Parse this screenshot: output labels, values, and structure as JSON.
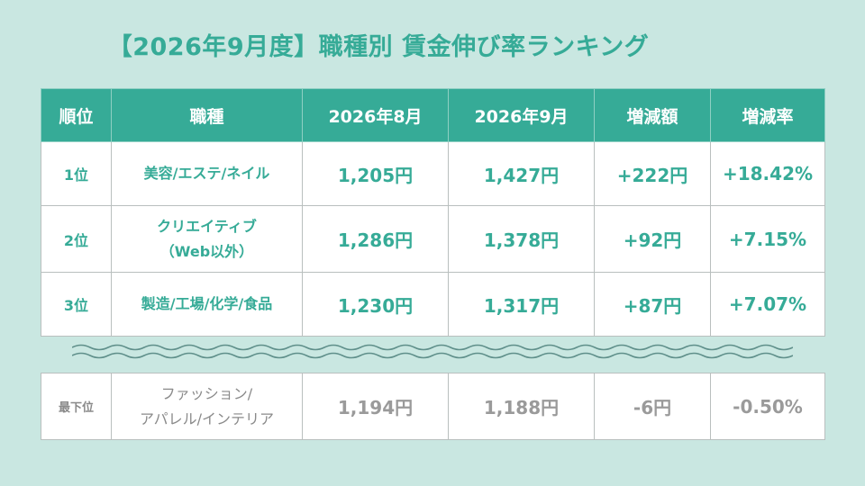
{
  "title": "【2026年9月度】職種別 賃金伸び率ランキング",
  "headers": [
    "順位",
    "職種",
    "2026年8月",
    "2026年9月",
    "増減額",
    "増減率"
  ],
  "rows": [
    {
      "rank": "1位",
      "job_line1": "美容/エステ/ネイル",
      "job_line2": "",
      "aug": "1,205円",
      "sep": "1,427円",
      "diff": "+222円",
      "rate": "+18.42%"
    },
    {
      "rank": "2位",
      "job_line1": "クリエイティブ",
      "job_line2": "（Web以外）",
      "aug": "1,286円",
      "sep": "1,378円",
      "diff": "+92円",
      "rate": "+7.15%"
    },
    {
      "rank": "3位",
      "job_line1": "製造/工場/化学/食品",
      "job_line2": "",
      "aug": "1,230円",
      "sep": "1,317円",
      "diff": "+87円",
      "rate": "+7.07%"
    }
  ],
  "last": {
    "rank": "最下位",
    "job_line1": "ファッション/",
    "job_line2": "アパレル/インテリア",
    "aug": "1,194円",
    "sep": "1,188円",
    "diff": "-6円",
    "rate": "-0.50%"
  },
  "colors": {
    "accent": "#36ab97",
    "background": "#c9e7e1",
    "muted": "#9a9a9a"
  }
}
